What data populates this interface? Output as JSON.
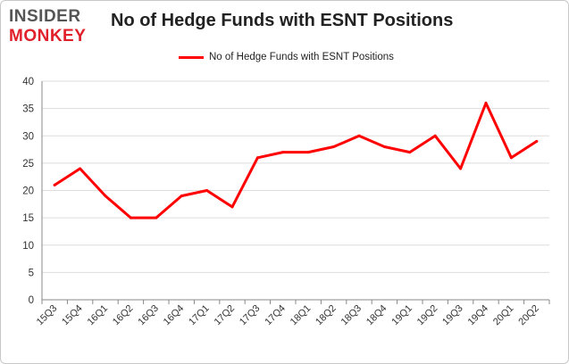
{
  "brand": {
    "line1": "INSIDER",
    "line2": "MONKEY"
  },
  "colors": {
    "series": "#ff0000",
    "grid": "#dddddd",
    "axis": "#888888",
    "brand_dark": "#555555",
    "brand_red": "#e0202a"
  },
  "chart_data": {
    "type": "line",
    "title": "No of Hedge Funds with ESNT Positions",
    "xlabel": "",
    "ylabel": "",
    "legend_position": "top-center",
    "grid": true,
    "ylim": [
      0,
      40
    ],
    "yticks": [
      0,
      5,
      10,
      15,
      20,
      25,
      30,
      35,
      40
    ],
    "categories": [
      "15Q3",
      "15Q4",
      "16Q1",
      "16Q2",
      "16Q3",
      "16Q4",
      "17Q1",
      "17Q2",
      "17Q3",
      "17Q4",
      "18Q1",
      "18Q2",
      "18Q3",
      "18Q4",
      "19Q1",
      "19Q2",
      "19Q3",
      "19Q4",
      "20Q1",
      "20Q2"
    ],
    "series": [
      {
        "name": "No of Hedge Funds with ESNT  Positions",
        "values": [
          21,
          24,
          19,
          15,
          15,
          19,
          20,
          17,
          26,
          27,
          27,
          28,
          30,
          28,
          27,
          30,
          24,
          36,
          26,
          29
        ]
      }
    ]
  }
}
